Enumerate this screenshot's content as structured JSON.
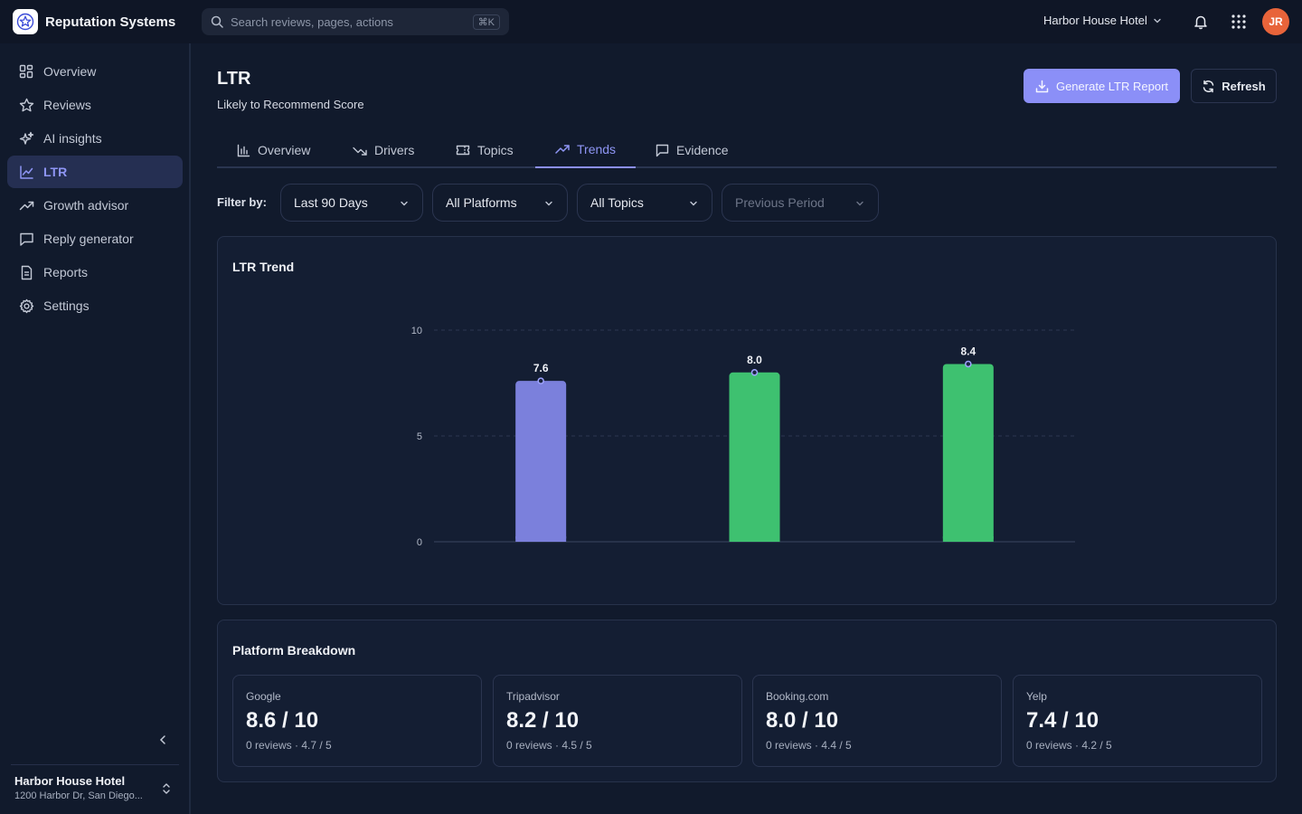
{
  "app": {
    "name": "Reputation Systems"
  },
  "search": {
    "placeholder": "Search reviews, pages, actions",
    "shortcut": "⌘K"
  },
  "header": {
    "hotel": "Harbor House Hotel",
    "avatar_initials": "JR"
  },
  "sidebar": {
    "items": [
      {
        "label": "Overview",
        "icon": "grid-icon"
      },
      {
        "label": "Reviews",
        "icon": "star-icon"
      },
      {
        "label": "AI insights",
        "icon": "sparkles-icon"
      },
      {
        "label": "LTR",
        "icon": "line-chart-icon",
        "active": true
      },
      {
        "label": "Growth advisor",
        "icon": "trending-up-icon"
      },
      {
        "label": "Reply generator",
        "icon": "message-icon"
      },
      {
        "label": "Reports",
        "icon": "document-icon"
      },
      {
        "label": "Settings",
        "icon": "gear-icon"
      }
    ],
    "location": {
      "name": "Harbor House Hotel",
      "address": "1200 Harbor Dr, San Diego..."
    }
  },
  "page": {
    "title": "LTR",
    "subtitle": "Likely to Recommend Score",
    "primary_button": "Generate LTR Report",
    "secondary_button": "Refresh"
  },
  "tabs": [
    {
      "label": "Overview",
      "icon": "bar-chart-icon"
    },
    {
      "label": "Drivers",
      "icon": "trending-down-icon"
    },
    {
      "label": "Topics",
      "icon": "ticket-icon"
    },
    {
      "label": "Trends",
      "icon": "trending-up-icon",
      "active": true
    },
    {
      "label": "Evidence",
      "icon": "message-icon"
    }
  ],
  "filters": {
    "label": "Filter by:",
    "period": "Last 90 Days",
    "platform": "All Platforms",
    "topic": "All Topics",
    "compare": "Previous Period"
  },
  "trend_card": {
    "title": "LTR Trend"
  },
  "chart_data": {
    "type": "bar",
    "title": "LTR Trend",
    "categories": [
      "",
      "",
      ""
    ],
    "values": [
      7.6,
      8.0,
      8.4
    ],
    "value_labels": [
      "7.6",
      "8.0",
      "8.4"
    ],
    "colors": [
      "#7b80dc",
      "#3ec170",
      "#3ec170"
    ],
    "y_ticks": [
      "0",
      "5",
      "10"
    ],
    "ylim": [
      0,
      10
    ],
    "grid": true,
    "legend": "none"
  },
  "breakdown": {
    "title": "Platform Breakdown",
    "platforms": [
      {
        "name": "Google",
        "score": "8.6 / 10",
        "meta": "0 reviews · 4.7 / 5"
      },
      {
        "name": "Tripadvisor",
        "score": "8.2 / 10",
        "meta": "0 reviews · 4.5 / 5"
      },
      {
        "name": "Booking.com",
        "score": "8.0 / 10",
        "meta": "0 reviews · 4.4 / 5"
      },
      {
        "name": "Yelp",
        "score": "7.4 / 10",
        "meta": "0 reviews · 4.2 / 5"
      }
    ]
  },
  "colors": {
    "accent": "#8b8ff7",
    "positive": "#3ec170",
    "background": "#111a2c"
  }
}
